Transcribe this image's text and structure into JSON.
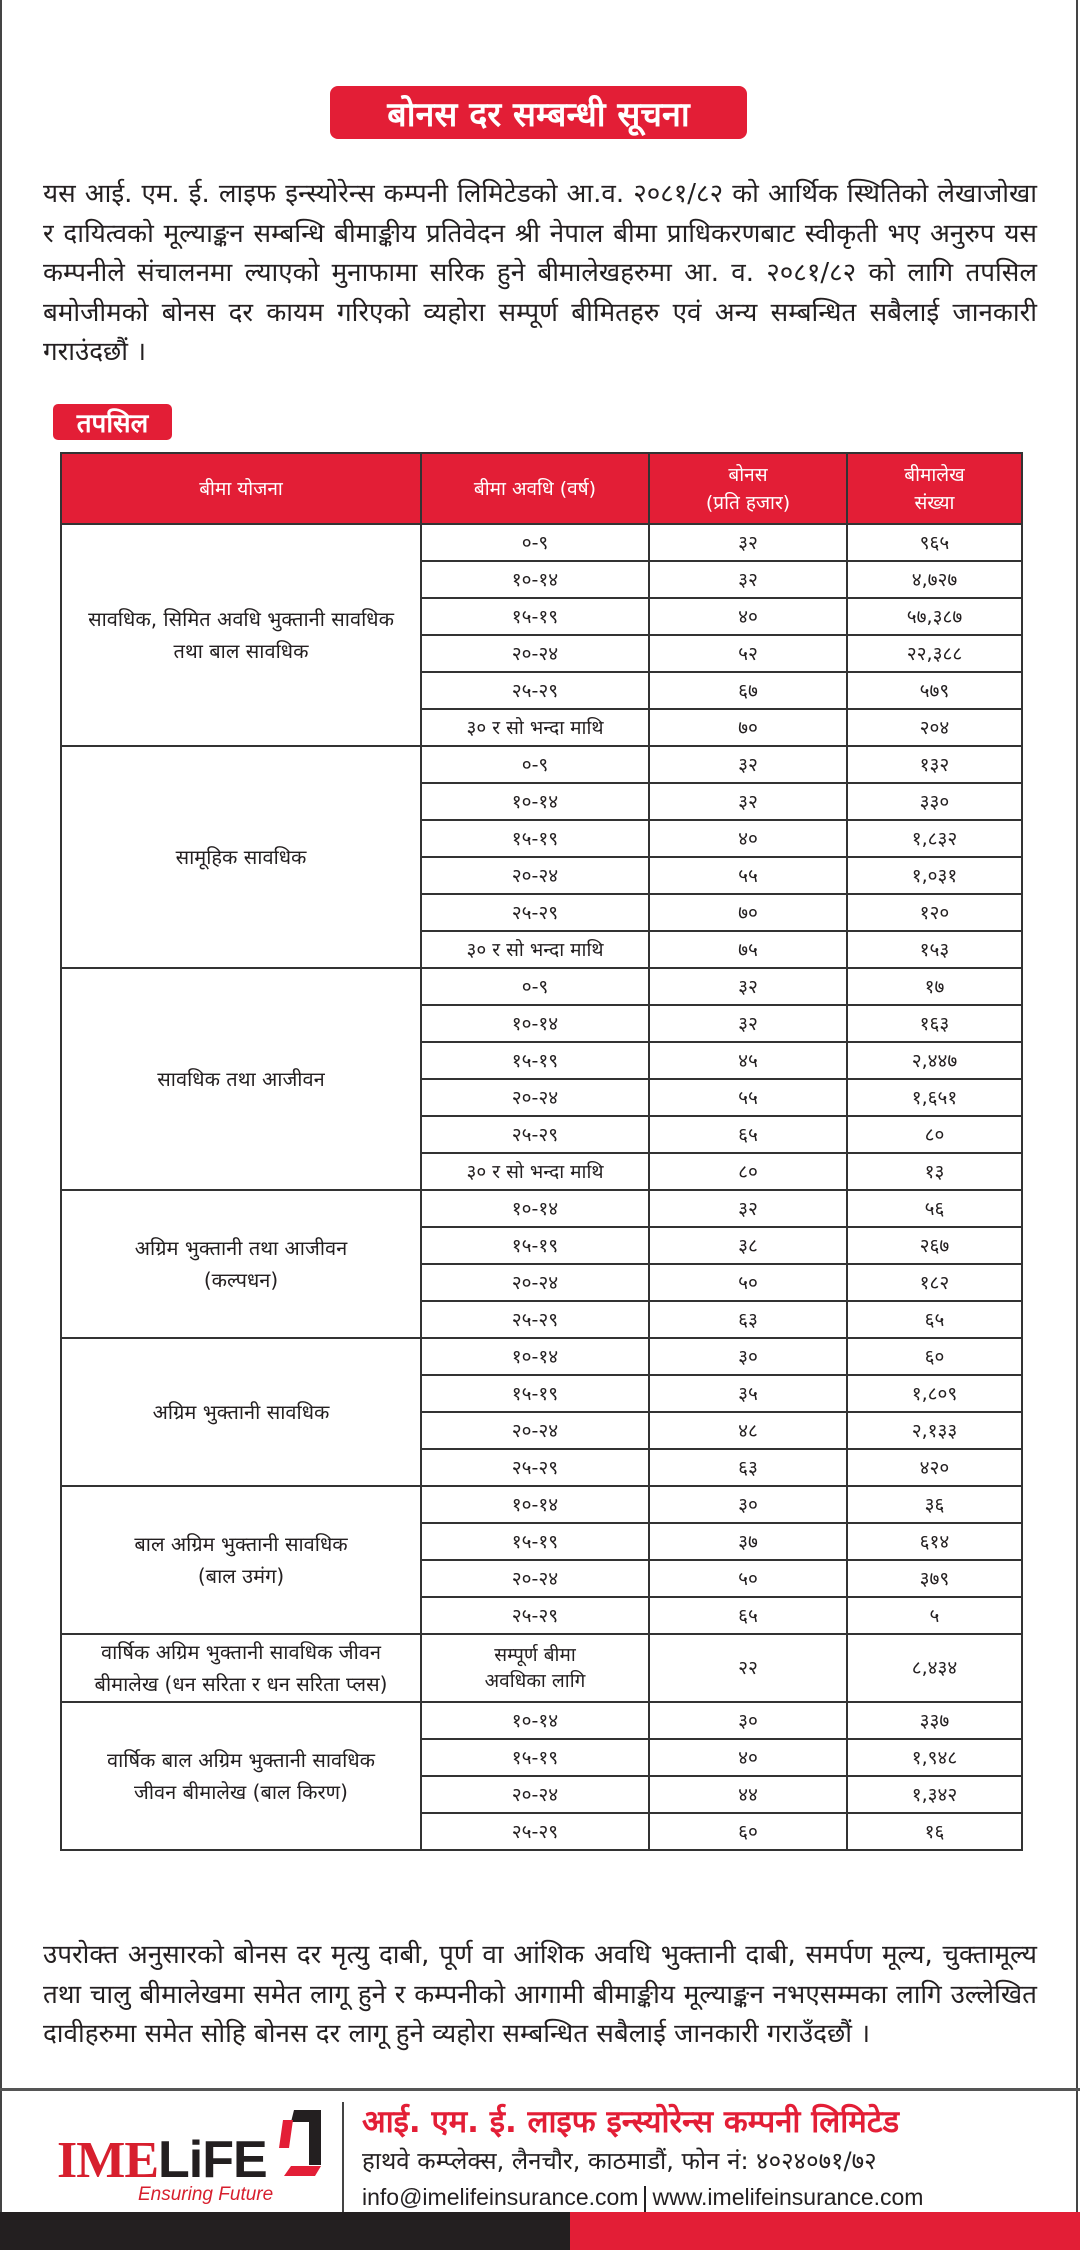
{
  "title": "बोनस दर सम्बन्धी सूचना",
  "intro": "यस आई. एम. ई. लाइफ इन्स्योरेन्स कम्पनी लिमिटेडको आ.व. २०८१/८२ को आर्थिक स्थितिको लेखाजोखा र दायित्वको मूल्याङ्कन सम्बन्धि बीमाङ्कीय प्रतिवेदन श्री नेपाल बीमा प्राधिकरणबाट स्वीकृती भए अनुरुप यस कम्पनीले संचालनमा ल्याएको मुनाफामा सरिक हुने बीमालेखहरुमा आ. व. २०८१/८२ को लागि तपसिल बमोजीमको बोनस दर कायम गरिएको व्यहोरा सम्पूर्ण बीमितहरु एवं अन्य सम्बन्धित सबैलाई जानकारी गराउंदछौं ।",
  "details_label": "तपसिल",
  "table": {
    "headers": [
      "बीमा योजना",
      "बीमा अवधि (वर्ष)",
      "बोनस\n(प्रति हजार)",
      "बीमालेख\nसंख्या"
    ],
    "groups": [
      {
        "plan": [
          "सावधिक, सिमित अवधि भुक्तानी सावधिक",
          "तथा बाल सावधिक"
        ],
        "rows": [
          {
            "term": "०-९",
            "bonus": "३२",
            "count": "९६५"
          },
          {
            "term": "१०-१४",
            "bonus": "३२",
            "count": "४,७२७"
          },
          {
            "term": "१५-१९",
            "bonus": "४०",
            "count": "५७,३८७"
          },
          {
            "term": "२०-२४",
            "bonus": "५२",
            "count": "२२,३८८"
          },
          {
            "term": "२५-२९",
            "bonus": "६७",
            "count": "५७९"
          },
          {
            "term": "३० र सो भन्दा माथि",
            "bonus": "७०",
            "count": "२०४"
          }
        ]
      },
      {
        "plan": [
          "सामूहिक सावधिक"
        ],
        "rows": [
          {
            "term": "०-९",
            "bonus": "३२",
            "count": "१३२"
          },
          {
            "term": "१०-१४",
            "bonus": "३२",
            "count": "३३०"
          },
          {
            "term": "१५-१९",
            "bonus": "४०",
            "count": "१,८३२"
          },
          {
            "term": "२०-२४",
            "bonus": "५५",
            "count": "१,०३१"
          },
          {
            "term": "२५-२९",
            "bonus": "७०",
            "count": "१२०"
          },
          {
            "term": "३० र सो भन्दा माथि",
            "bonus": "७५",
            "count": "१५३"
          }
        ]
      },
      {
        "plan": [
          "सावधिक तथा आजीवन"
        ],
        "rows": [
          {
            "term": "०-९",
            "bonus": "३२",
            "count": "१७"
          },
          {
            "term": "१०-१४",
            "bonus": "३२",
            "count": "१६३"
          },
          {
            "term": "१५-१९",
            "bonus": "४५",
            "count": "२,४४७"
          },
          {
            "term": "२०-२४",
            "bonus": "५५",
            "count": "१,६५१"
          },
          {
            "term": "२५-२९",
            "bonus": "६५",
            "count": "८०"
          },
          {
            "term": "३० र सो भन्दा माथि",
            "bonus": "८०",
            "count": "१३"
          }
        ]
      },
      {
        "plan": [
          "अग्रिम भुक्तानी तथा आजीवन",
          "(कल्पधन)"
        ],
        "rows": [
          {
            "term": "१०-१४",
            "bonus": "३२",
            "count": "५६"
          },
          {
            "term": "१५-१९",
            "bonus": "३८",
            "count": "२६७"
          },
          {
            "term": "२०-२४",
            "bonus": "५०",
            "count": "१८२"
          },
          {
            "term": "२५-२९",
            "bonus": "६३",
            "count": "६५"
          }
        ]
      },
      {
        "plan": [
          "अग्रिम भुक्तानी सावधिक"
        ],
        "rows": [
          {
            "term": "१०-१४",
            "bonus": "३०",
            "count": "६०"
          },
          {
            "term": "१५-१९",
            "bonus": "३५",
            "count": "१,८०९"
          },
          {
            "term": "२०-२४",
            "bonus": "४८",
            "count": "२,१३३"
          },
          {
            "term": "२५-२९",
            "bonus": "६३",
            "count": "४२०"
          }
        ]
      },
      {
        "plan": [
          "बाल अग्रिम भुक्तानी सावधिक",
          "(बाल उमंग)"
        ],
        "rows": [
          {
            "term": "१०-१४",
            "bonus": "३०",
            "count": "३६"
          },
          {
            "term": "१५-१९",
            "bonus": "३७",
            "count": "६१४"
          },
          {
            "term": "२०-२४",
            "bonus": "५०",
            "count": "३७९"
          },
          {
            "term": "२५-२९",
            "bonus": "६५",
            "count": "५"
          }
        ]
      },
      {
        "plan": [
          "वार्षिक अग्रिम भुक्तानी सावधिक जीवन",
          "बीमालेख (धन सरिता र धन सरिता प्लस)"
        ],
        "tall": true,
        "rows": [
          {
            "term": "सम्पूर्ण बीमा अवधिका लागि",
            "bonus": "२२",
            "count": "८,४३४"
          }
        ]
      },
      {
        "plan": [
          "वार्षिक बाल अग्रिम भुक्तानी सावधिक",
          "जीवन बीमालेख  (बाल किरण)"
        ],
        "rows": [
          {
            "term": "१०-१४",
            "bonus": "३०",
            "count": "३३७"
          },
          {
            "term": "१५-१९",
            "bonus": "४०",
            "count": "१,९४८"
          },
          {
            "term": "२०-२४",
            "bonus": "४४",
            "count": "१,३४२"
          },
          {
            "term": "२५-२९",
            "bonus": "६०",
            "count": "१६"
          }
        ]
      }
    ]
  },
  "closing": "उपरोक्त अनुसारको बोनस दर मृत्यु दाबी, पूर्ण वा आंशिक अवधि भुक्तानी दाबी, समर्पण मूल्य, चुक्तामूल्य तथा चालु बीमालेखमा समेत लागू हुने र कम्पनीको आगामी बीमाङ्कीय मूल्याङ्कन नभएसम्मका लागि उल्लेखित दावीहरुमा समेत सोहि बोनस दर लागू हुने व्यहोरा सम्बन्धित सबैलाई जानकारी गराउँदछौं ।",
  "footer": {
    "logo_text_red": "IME",
    "logo_text_dark": "LiFE",
    "logo_tagline": "Ensuring Future",
    "company_name": "आई. एम. ई. लाइफ इन्स्योरेन्स कम्पनी लिमिटेड",
    "address": "हाथवे कम्प्लेक्स, लैनचौर, काठमाडौं, फोन नं: ४०२४०७१/७२",
    "email": "info@imelifeinsurance.com",
    "website": "www.imelifeinsurance.com"
  },
  "colors": {
    "brand_red": "#e31e36",
    "dark": "#231f20"
  }
}
